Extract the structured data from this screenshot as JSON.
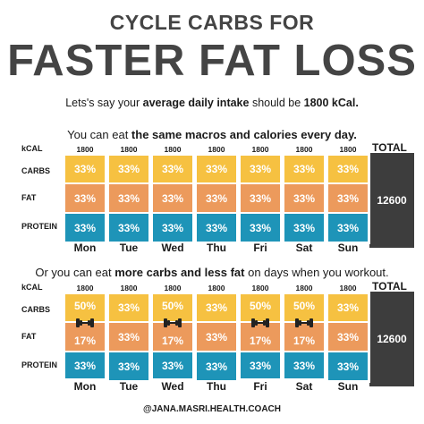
{
  "header": {
    "title_top": "CYCLE CARBS FOR",
    "title_main": "FASTER FAT LOSS"
  },
  "intro": {
    "pre": "Lets's say your ",
    "bold1": "average daily intake",
    "mid": " should be ",
    "bold2": "1800 kCal."
  },
  "section1": {
    "caption_pre": "You can eat ",
    "caption_bold": "the same macros and calories every day.",
    "caption_post": "",
    "row_labels": {
      "kcal": "kCAL",
      "carbs": "CARBS",
      "fat": "FAT",
      "protein": "PROTEIN"
    },
    "total_label": "TOTAL",
    "total_value": "12600",
    "days": [
      {
        "name": "Mon",
        "kcal": "1800",
        "carbs": "33%",
        "fat": "33%",
        "protein": "33%"
      },
      {
        "name": "Tue",
        "kcal": "1800",
        "carbs": "33%",
        "fat": "33%",
        "protein": "33%"
      },
      {
        "name": "Wed",
        "kcal": "1800",
        "carbs": "33%",
        "fat": "33%",
        "protein": "33%"
      },
      {
        "name": "Thu",
        "kcal": "1800",
        "carbs": "33%",
        "fat": "33%",
        "protein": "33%"
      },
      {
        "name": "Fri",
        "kcal": "1800",
        "carbs": "33%",
        "fat": "33%",
        "protein": "33%"
      },
      {
        "name": "Sat",
        "kcal": "1800",
        "carbs": "33%",
        "fat": "33%",
        "protein": "33%"
      },
      {
        "name": "Sun",
        "kcal": "1800",
        "carbs": "33%",
        "fat": "33%",
        "protein": "33%"
      }
    ]
  },
  "section2": {
    "caption_pre": "Or you can eat ",
    "caption_bold": "more carbs and less fat",
    "caption_post": " on days when you workout.",
    "row_labels": {
      "kcal": "kCAL",
      "carbs": "CARBS",
      "fat": "FAT",
      "protein": "PROTEIN"
    },
    "total_label": "TOTAL",
    "total_value": "12600",
    "days": [
      {
        "name": "Mon",
        "kcal": "1800",
        "carbs": "50%",
        "fat": "17%",
        "protein": "33%",
        "workout": true
      },
      {
        "name": "Tue",
        "kcal": "1800",
        "carbs": "33%",
        "fat": "33%",
        "protein": "33%",
        "workout": false
      },
      {
        "name": "Wed",
        "kcal": "1800",
        "carbs": "50%",
        "fat": "17%",
        "protein": "33%",
        "workout": true
      },
      {
        "name": "Thu",
        "kcal": "1800",
        "carbs": "33%",
        "fat": "33%",
        "protein": "33%",
        "workout": false
      },
      {
        "name": "Fri",
        "kcal": "1800",
        "carbs": "50%",
        "fat": "17%",
        "protein": "33%",
        "workout": true
      },
      {
        "name": "Sat",
        "kcal": "1800",
        "carbs": "50%",
        "fat": "17%",
        "protein": "33%",
        "workout": true
      },
      {
        "name": "Sun",
        "kcal": "1800",
        "carbs": "33%",
        "fat": "33%",
        "protein": "33%",
        "workout": false
      }
    ]
  },
  "icons": {
    "workout": "dumbbell-icon"
  },
  "colors": {
    "carbs": "#f6c141",
    "fat": "#ec9a5c",
    "protein": "#1e94b8",
    "total": "#3d3d3d",
    "title": "#444444"
  },
  "footer": {
    "handle": "@JANA.MASRI.HEALTH.COACH"
  }
}
